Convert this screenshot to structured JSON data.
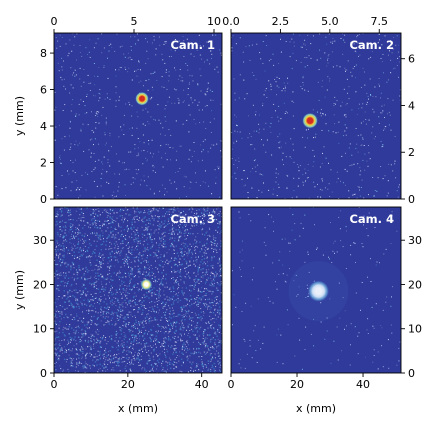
{
  "chart_data": [
    {
      "type": "heatmap",
      "title": "Cam. 1",
      "xlim": [
        0,
        10.5
      ],
      "ylim": [
        0,
        9.1
      ],
      "xticks": [
        0,
        5,
        10
      ],
      "yticks": [
        0,
        2,
        4,
        6,
        8
      ],
      "xaxis_position": "top",
      "yaxis_position": "left",
      "xlabel": "",
      "ylabel": "y (mm)",
      "spot": {
        "x": 5.5,
        "y": 5.5
      },
      "colors": {
        "background": "#2f3a9a",
        "noise": "#dfe7ff",
        "spot_core": "#d62d20",
        "spot_mid": "#f6d33c",
        "spot_halo": "#8fe0c8"
      }
    },
    {
      "type": "heatmap",
      "title": "Cam. 2",
      "xlim": [
        0,
        8.6
      ],
      "ylim": [
        0,
        7.1
      ],
      "xticks": [
        0.0,
        2.5,
        5.0,
        7.5
      ],
      "xtick_labels": [
        "0.0",
        "2.5",
        "5.0",
        "7.5"
      ],
      "yticks": [
        0,
        2,
        4,
        6
      ],
      "xaxis_position": "top",
      "yaxis_position": "right",
      "xlabel": "",
      "ylabel": "",
      "spot": {
        "x": 4.0,
        "y": 3.35
      },
      "colors": {
        "background": "#2f3a9a",
        "noise": "#dfe7ff",
        "spot_core": "#d62d20",
        "spot_mid": "#f6d33c",
        "spot_halo": "#8fe0c8"
      }
    },
    {
      "type": "heatmap",
      "title": "Cam. 3",
      "xlim": [
        0,
        45.5
      ],
      "ylim": [
        0,
        37.5
      ],
      "xticks": [
        0,
        20,
        40
      ],
      "yticks": [
        0,
        10,
        20,
        30
      ],
      "xaxis_position": "bottom",
      "yaxis_position": "left",
      "xlabel": "x (mm)",
      "ylabel": "y (mm)",
      "spot": {
        "x": 25.0,
        "y": 20.0
      },
      "colors": {
        "background": "#2f3a9a",
        "noise": "#dfe7ff",
        "spot_core": "#ffffff",
        "spot_mid": "#f3f28a",
        "spot_halo": "#7fd8c8"
      }
    },
    {
      "type": "heatmap",
      "title": "Cam. 4",
      "xlim": [
        0,
        51.5
      ],
      "ylim": [
        0,
        37.5
      ],
      "xticks": [
        0,
        20,
        40
      ],
      "yticks": [
        0,
        10,
        20,
        30
      ],
      "xaxis_position": "bottom",
      "yaxis_position": "right",
      "xlabel": "x (mm)",
      "ylabel": "",
      "spot": {
        "x": 26.5,
        "y": 18.5
      },
      "colors": {
        "background": "#2f3a9a",
        "noise": "#c9d6ff",
        "spot_core": "#ffffff",
        "spot_mid": "#e6f5ff",
        "spot_halo": "#6fc0e8"
      }
    }
  ]
}
